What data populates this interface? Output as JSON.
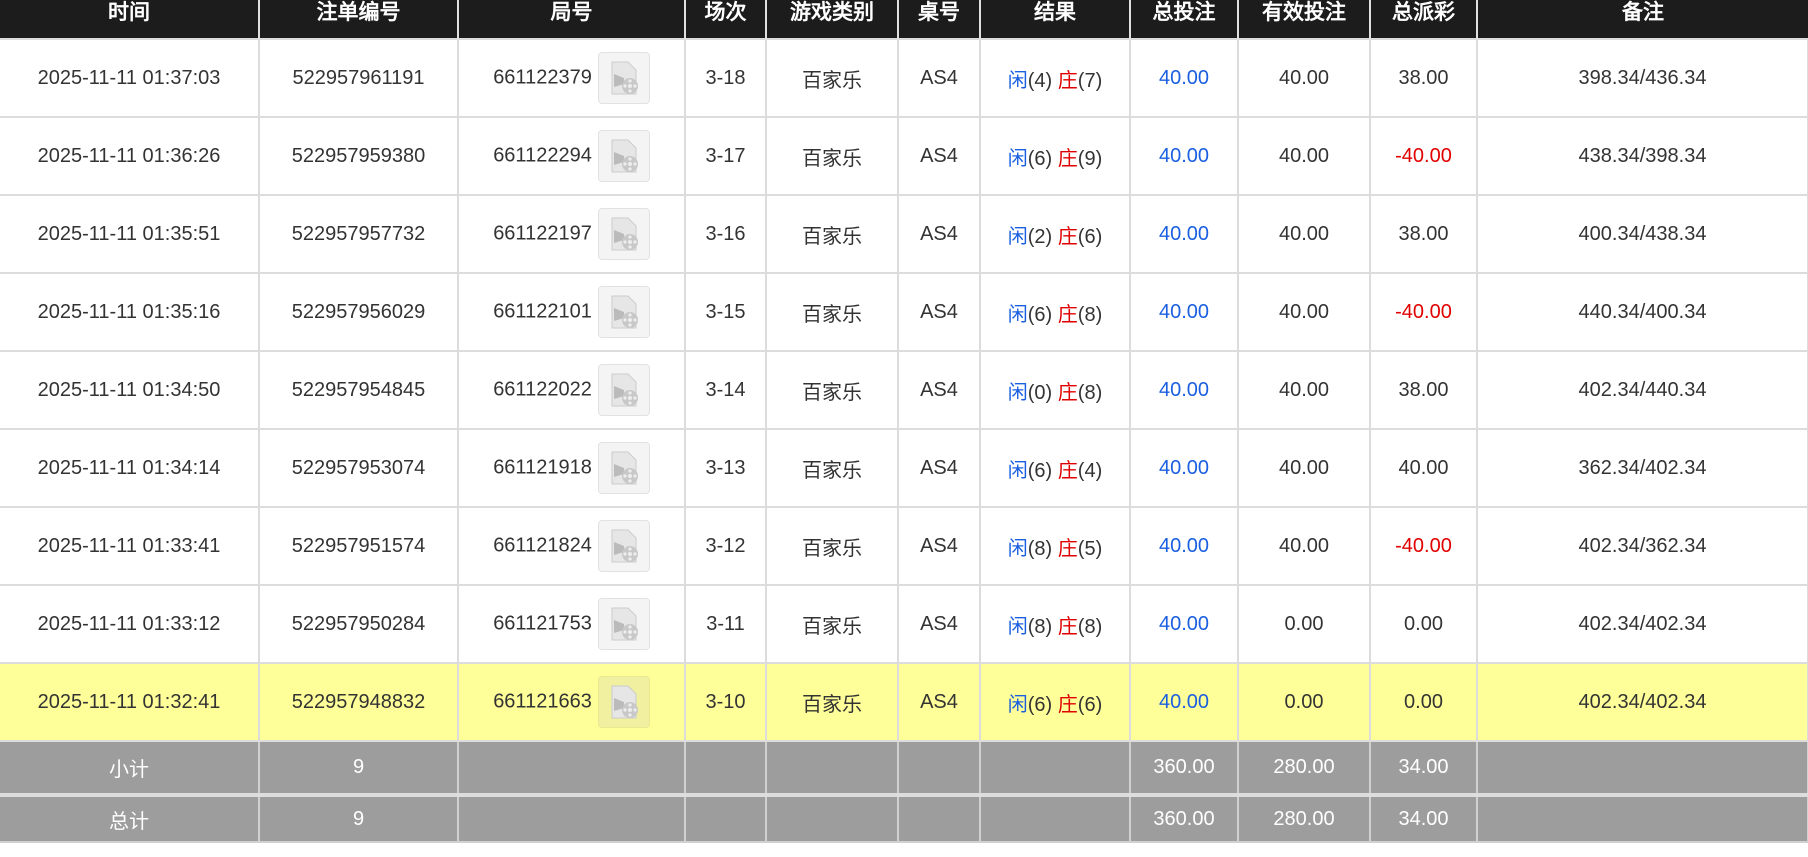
{
  "headers": [
    "时间",
    "注单编号",
    "局号",
    "场次",
    "游戏类别",
    "桌号",
    "结果",
    "总投注",
    "有效投注",
    "总派彩",
    "备注"
  ],
  "rows": [
    {
      "time": "2025-11-11 01:37:03",
      "bet_id": "522957961191",
      "round": "661122379",
      "shoe": "3-18",
      "game": "百家乐",
      "table": "AS4",
      "player_label": "闲",
      "player": "(4)",
      "banker_label": "庄",
      "banker": "(7)",
      "total_bet": "40.00",
      "valid_bet": "40.00",
      "payout": "38.00",
      "payout_negative": false,
      "note": "398.34/436.34"
    },
    {
      "time": "2025-11-11 01:36:26",
      "bet_id": "522957959380",
      "round": "661122294",
      "shoe": "3-17",
      "game": "百家乐",
      "table": "AS4",
      "player_label": "闲",
      "player": "(6)",
      "banker_label": "庄",
      "banker": "(9)",
      "total_bet": "40.00",
      "valid_bet": "40.00",
      "payout": "-40.00",
      "payout_negative": true,
      "note": "438.34/398.34"
    },
    {
      "time": "2025-11-11 01:35:51",
      "bet_id": "522957957732",
      "round": "661122197",
      "shoe": "3-16",
      "game": "百家乐",
      "table": "AS4",
      "player_label": "闲",
      "player": "(2)",
      "banker_label": "庄",
      "banker": "(6)",
      "total_bet": "40.00",
      "valid_bet": "40.00",
      "payout": "38.00",
      "payout_negative": false,
      "note": "400.34/438.34"
    },
    {
      "time": "2025-11-11 01:35:16",
      "bet_id": "522957956029",
      "round": "661122101",
      "shoe": "3-15",
      "game": "百家乐",
      "table": "AS4",
      "player_label": "闲",
      "player": "(6)",
      "banker_label": "庄",
      "banker": "(8)",
      "total_bet": "40.00",
      "valid_bet": "40.00",
      "payout": "-40.00",
      "payout_negative": true,
      "note": "440.34/400.34"
    },
    {
      "time": "2025-11-11 01:34:50",
      "bet_id": "522957954845",
      "round": "661122022",
      "shoe": "3-14",
      "game": "百家乐",
      "table": "AS4",
      "player_label": "闲",
      "player": "(0)",
      "banker_label": "庄",
      "banker": "(8)",
      "total_bet": "40.00",
      "valid_bet": "40.00",
      "payout": "38.00",
      "payout_negative": false,
      "note": "402.34/440.34"
    },
    {
      "time": "2025-11-11 01:34:14",
      "bet_id": "522957953074",
      "round": "661121918",
      "shoe": "3-13",
      "game": "百家乐",
      "table": "AS4",
      "player_label": "闲",
      "player": "(6)",
      "banker_label": "庄",
      "banker": "(4)",
      "total_bet": "40.00",
      "valid_bet": "40.00",
      "payout": "40.00",
      "payout_negative": false,
      "note": "362.34/402.34"
    },
    {
      "time": "2025-11-11 01:33:41",
      "bet_id": "522957951574",
      "round": "661121824",
      "shoe": "3-12",
      "game": "百家乐",
      "table": "AS4",
      "player_label": "闲",
      "player": "(8)",
      "banker_label": "庄",
      "banker": "(5)",
      "total_bet": "40.00",
      "valid_bet": "40.00",
      "payout": "-40.00",
      "payout_negative": true,
      "note": "402.34/362.34"
    },
    {
      "time": "2025-11-11 01:33:12",
      "bet_id": "522957950284",
      "round": "661121753",
      "shoe": "3-11",
      "game": "百家乐",
      "table": "AS4",
      "player_label": "闲",
      "player": "(8)",
      "banker_label": "庄",
      "banker": "(8)",
      "total_bet": "40.00",
      "valid_bet": "0.00",
      "payout": "0.00",
      "payout_negative": false,
      "note": "402.34/402.34"
    },
    {
      "time": "2025-11-11 01:32:41",
      "bet_id": "522957948832",
      "round": "661121663",
      "shoe": "3-10",
      "game": "百家乐",
      "table": "AS4",
      "player_label": "闲",
      "player": "(6)",
      "banker_label": "庄",
      "banker": "(6)",
      "total_bet": "40.00",
      "valid_bet": "0.00",
      "payout": "0.00",
      "payout_negative": false,
      "note": "402.34/402.34",
      "highlighted": true
    }
  ],
  "subtotal": {
    "label": "小计",
    "count": "9",
    "total_bet": "360.00",
    "valid_bet": "280.00",
    "payout": "34.00"
  },
  "total": {
    "label": "总计",
    "count": "9",
    "total_bet": "360.00",
    "valid_bet": "280.00",
    "payout": "34.00"
  },
  "colors": {
    "header_bg": "#1c1c1c",
    "highlight": "#ffff99",
    "summary_bg": "#9d9d9d",
    "player": "#1a5fe0",
    "banker": "#e00000"
  },
  "icons": {
    "replay": "video-file-icon"
  }
}
